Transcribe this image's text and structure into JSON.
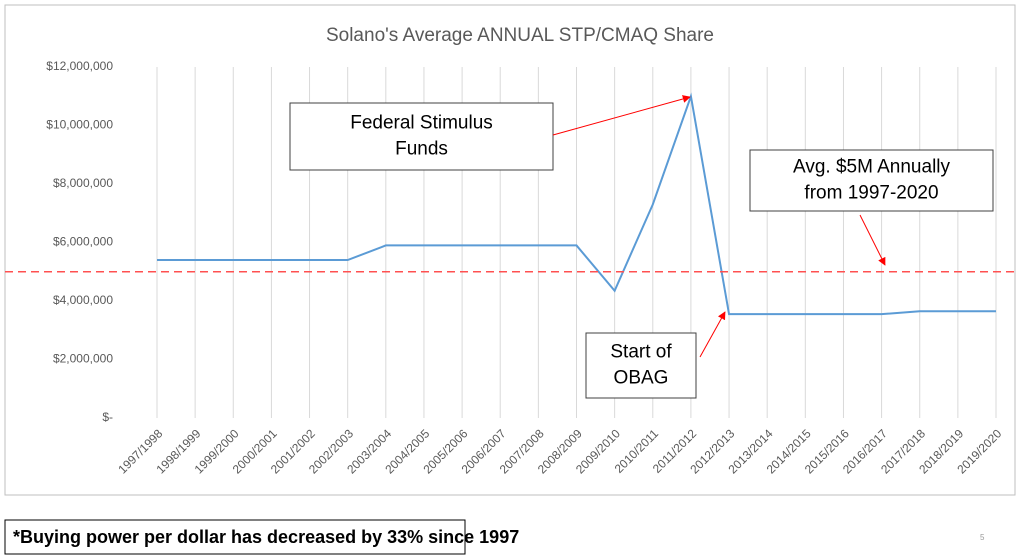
{
  "chart_data": {
    "type": "line",
    "title": "Solano's Average ANNUAL STP/CMAQ Share",
    "categories": [
      "1997/1998",
      "1998/1999",
      "1999/2000",
      "2000/2001",
      "2001/2002",
      "2002/2003",
      "2003/2004",
      "2004/2005",
      "2005/2006",
      "2006/2007",
      "2007/2008",
      "2008/2009",
      "2009/2010",
      "2010/2011",
      "2011/2012",
      "2012/2013",
      "2013/2014",
      "2014/2015",
      "2015/2016",
      "2016/2017",
      "2017/2018",
      "2018/2019",
      "2019/2020"
    ],
    "series": [
      {
        "color": "#5b9bd5",
        "values": [
          5400000,
          5400000,
          5400000,
          5400000,
          5400000,
          5400000,
          5900000,
          5900000,
          5900000,
          5900000,
          5900000,
          5900000,
          4350000,
          7300000,
          11000000,
          3550000,
          3550000,
          3550000,
          3550000,
          3550000,
          3650000,
          3650000,
          3650000
        ]
      }
    ],
    "ylim": [
      0,
      12000000
    ],
    "yticks": [
      {
        "value": 0,
        "label": "$-"
      },
      {
        "value": 2000000,
        "label": "$2,000,000"
      },
      {
        "value": 4000000,
        "label": "$4,000,000"
      },
      {
        "value": 6000000,
        "label": "$6,000,000"
      },
      {
        "value": 8000000,
        "label": "$8,000,000"
      },
      {
        "value": 10000000,
        "label": "$10,000,000"
      },
      {
        "value": 12000000,
        "label": "$12,000,000"
      }
    ],
    "reference_line": {
      "value": 5000000,
      "color": "#ff5050"
    },
    "annotations": [
      {
        "lines": [
          "Federal Stimulus",
          "Funds"
        ]
      },
      {
        "lines": [
          "Avg. $5M Annually",
          "from 1997-2020"
        ]
      },
      {
        "lines": [
          "Start of",
          "OBAG"
        ]
      }
    ],
    "vertical_grid": true
  },
  "footnote": "*Buying power per dollar has decreased by 33% since 1997",
  "page_number": "5"
}
